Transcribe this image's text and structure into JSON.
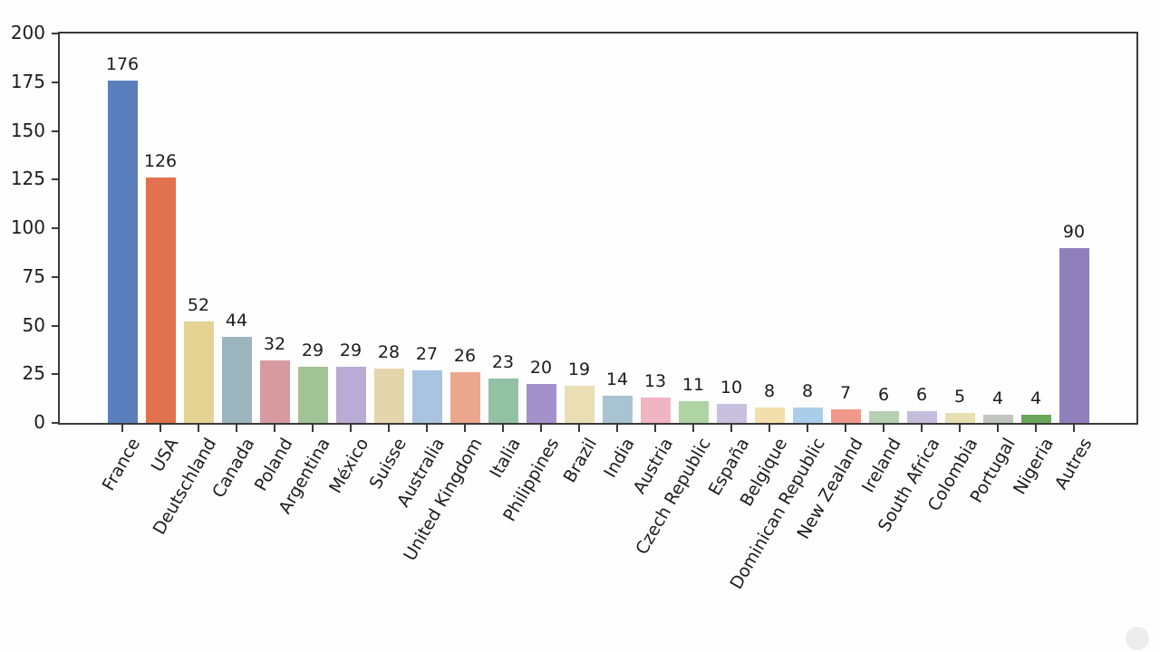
{
  "figure": {
    "background_color": "#fefefe",
    "axis_color": "#3a3a3a",
    "text_color": "#1c1c1c"
  },
  "chart_data": {
    "type": "bar",
    "title": "",
    "xlabel": "",
    "ylabel": "",
    "categories": [
      "France",
      "USA",
      "Deutschland",
      "Canada",
      "Poland",
      "Argentina",
      "México",
      "Suisse",
      "Australia",
      "United Kingdom",
      "Italia",
      "Philippines",
      "Brazil",
      "India",
      "Austria",
      "Czech Republic",
      "España",
      "Belgique",
      "Dominican Republic",
      "New Zealand",
      "Ireland",
      "South Africa",
      "Colombia",
      "Portugal",
      "Nigeria",
      "Autres"
    ],
    "values": [
      176,
      126,
      52,
      44,
      32,
      29,
      29,
      28,
      27,
      26,
      23,
      20,
      19,
      14,
      13,
      11,
      10,
      8,
      8,
      7,
      6,
      6,
      5,
      4,
      4,
      90
    ],
    "bar_colors": [
      "#5b7fbd",
      "#e2714e",
      "#e5d394",
      "#9cb4bd",
      "#d79aa0",
      "#a2c396",
      "#b9abd4",
      "#e4d6ac",
      "#a9c4e0",
      "#eba68e",
      "#93c1a4",
      "#a291cd",
      "#eadfb4",
      "#a8c3d2",
      "#f0b4c2",
      "#aed4a4",
      "#c9c0e0",
      "#f2e0ac",
      "#aacdea",
      "#f0998a",
      "#b5cfb0",
      "#c4bcdd",
      "#e8dfb2",
      "#c2c4be",
      "#6aa65a",
      "#8f7fbc"
    ],
    "value_labels": [
      "176",
      "126",
      "52",
      "44",
      "32",
      "29",
      "29",
      "28",
      "27",
      "26",
      "23",
      "20",
      "19",
      "14",
      "13",
      "11",
      "10",
      "8",
      "8",
      "7",
      "6",
      "6",
      "5",
      "4",
      "4",
      "90"
    ],
    "ylim": [
      0,
      200
    ],
    "yticks": [
      0,
      25,
      50,
      75,
      100,
      125,
      150,
      175,
      200
    ],
    "ytick_labels": [
      "0",
      "25",
      "50",
      "75",
      "100",
      "125",
      "150",
      "175",
      "200"
    ],
    "grid": false,
    "legend": null,
    "x_tick_rotation_deg": 60,
    "bars_with_value_labels": true
  }
}
